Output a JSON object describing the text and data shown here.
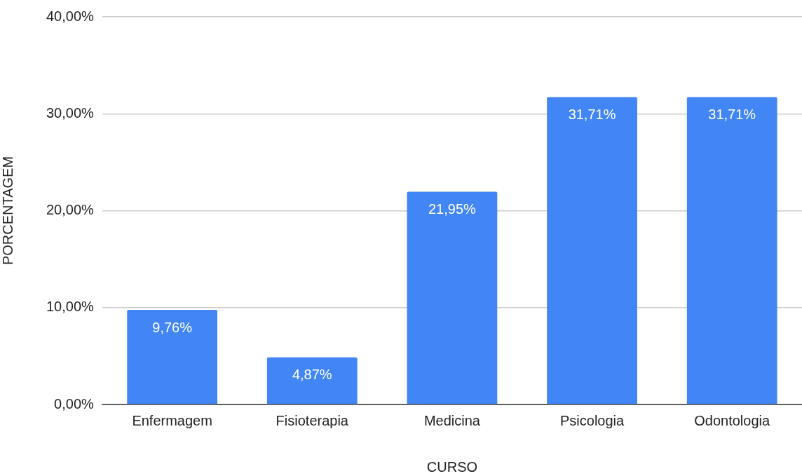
{
  "chart_data": {
    "type": "bar",
    "xlabel": "CURSO",
    "ylabel": "PORCENTAGEM",
    "categories": [
      "Enfermagem",
      "Fisioterapia",
      "Medicina",
      "Psicologia",
      "Odontologia"
    ],
    "values": [
      9.76,
      4.87,
      21.95,
      31.71,
      31.71
    ],
    "value_labels": [
      "9,76%",
      "4,87%",
      "21,95%",
      "31,71%",
      "31,71%"
    ],
    "color": "#4285f4",
    "ylim": [
      0,
      40
    ],
    "yticks": [
      {
        "value": 0,
        "label": "0,00%"
      },
      {
        "value": 10,
        "label": "10,00%"
      },
      {
        "value": 20,
        "label": "20,00%"
      },
      {
        "value": 30,
        "label": "30,00%"
      },
      {
        "value": 40,
        "label": "40,00%"
      }
    ],
    "grid": "y",
    "legend": false
  }
}
